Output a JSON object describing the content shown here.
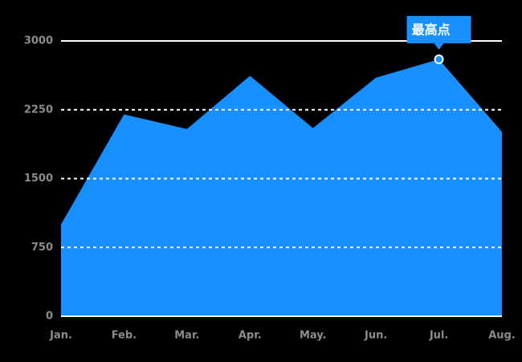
{
  "chart_data": {
    "type": "area",
    "categories": [
      "Jan.",
      "Feb.",
      "Mar.",
      "Apr.",
      "May.",
      "Jun.",
      "Jul.",
      "Aug."
    ],
    "values": [
      1000,
      2200,
      2040,
      2620,
      2050,
      2600,
      2800,
      2010
    ],
    "color": "#1890ff",
    "ylim": [
      0,
      3000
    ],
    "yticks": [
      0,
      750,
      1500,
      2250,
      3000
    ],
    "grid": true,
    "annotation": "最高点"
  }
}
